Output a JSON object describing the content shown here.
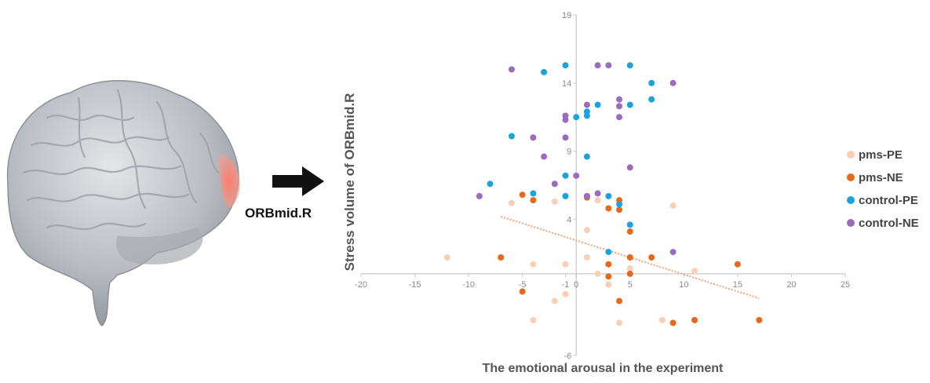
{
  "figure": {
    "region_label": "ORBmid.R"
  },
  "colors": {
    "pms-PE": "#f9cfb6",
    "pms-NE": "#e8681a",
    "control-PE": "#1ba3dc",
    "control-NE": "#9b6bbf",
    "trendline": "#f2a27a",
    "axis": "#c9c9c9",
    "brain": "#b9bcc2",
    "highlight": "#f36a5e"
  },
  "icons": [
    "brain-illustration",
    "arrow-right-icon"
  ],
  "chart_data": {
    "type": "scatter",
    "xlabel": "The emotional arousal in the experiment",
    "ylabel": "Stress volume of ORBmid.R",
    "xlim": [
      -20,
      25
    ],
    "ylim": [
      -6,
      19
    ],
    "xticks": [
      -20,
      -15,
      -10,
      -5,
      -1,
      0,
      5,
      10,
      15,
      20,
      25
    ],
    "xtick_labels": [
      "-20",
      "-15",
      "-10",
      "-5",
      "-1",
      "0",
      "5",
      "10",
      "15",
      "20",
      "25"
    ],
    "yticks": [
      -6,
      4,
      9,
      14,
      19
    ],
    "ytick_labels": [
      "-6",
      "4",
      "9",
      "14",
      "19"
    ],
    "grid": false,
    "legend_position": "right",
    "series": [
      {
        "name": "pms-PE",
        "points": [
          [
            -12,
            1.2
          ],
          [
            -6,
            5.2
          ],
          [
            -4,
            0.7
          ],
          [
            -4,
            -3.4
          ],
          [
            -2,
            5.3
          ],
          [
            -2,
            -2
          ],
          [
            -1,
            -1.5
          ],
          [
            -1,
            0.7
          ],
          [
            1,
            1.2
          ],
          [
            1,
            3.2
          ],
          [
            1,
            5.7
          ],
          [
            2,
            0
          ],
          [
            2,
            5.4
          ],
          [
            3,
            -0.8
          ],
          [
            4,
            -3.6
          ],
          [
            5,
            0.4
          ],
          [
            8,
            -3.4
          ],
          [
            9,
            5
          ],
          [
            11,
            0.2
          ]
        ]
      },
      {
        "name": "pms-NE",
        "points": [
          [
            -7,
            1.2
          ],
          [
            -5,
            -1.3
          ],
          [
            -5,
            5.8
          ],
          [
            -4,
            5.4
          ],
          [
            1,
            5.6
          ],
          [
            3,
            4.8
          ],
          [
            3,
            0.7
          ],
          [
            3,
            -0.2
          ],
          [
            4,
            5.4
          ],
          [
            4,
            4.7
          ],
          [
            4,
            -2
          ],
          [
            5,
            3.1
          ],
          [
            5,
            1.2
          ],
          [
            5,
            0
          ],
          [
            7,
            1.2
          ],
          [
            9,
            -3.6
          ],
          [
            11,
            -3.4
          ],
          [
            15,
            0.7
          ],
          [
            17,
            -3.4
          ]
        ]
      },
      {
        "name": "control-PE",
        "points": [
          [
            -8,
            6.6
          ],
          [
            -6,
            10.1
          ],
          [
            -4,
            5.9
          ],
          [
            -3,
            14.8
          ],
          [
            -1,
            15.3
          ],
          [
            -1,
            7.2
          ],
          [
            -1,
            5.7
          ],
          [
            0,
            11.5
          ],
          [
            1,
            11.6
          ],
          [
            1,
            11.9
          ],
          [
            1,
            8.6
          ],
          [
            2,
            12.4
          ],
          [
            3,
            5.7
          ],
          [
            3,
            1.6
          ],
          [
            4,
            5.1
          ],
          [
            5,
            15.3
          ],
          [
            5,
            12.4
          ],
          [
            5,
            3.6
          ],
          [
            7,
            14
          ],
          [
            7,
            12.8
          ]
        ]
      },
      {
        "name": "control-NE",
        "points": [
          [
            -9,
            5.7
          ],
          [
            -6,
            15
          ],
          [
            -4,
            10
          ],
          [
            -3,
            8.6
          ],
          [
            -2,
            6.6
          ],
          [
            -1,
            11.6
          ],
          [
            -1,
            11.3
          ],
          [
            -1,
            10
          ],
          [
            0,
            7.2
          ],
          [
            1,
            12.4
          ],
          [
            1,
            5.7
          ],
          [
            2,
            15.3
          ],
          [
            2,
            5.9
          ],
          [
            3,
            15.3
          ],
          [
            4,
            12.8
          ],
          [
            4,
            12.3
          ],
          [
            4,
            11.5
          ],
          [
            5,
            7.8
          ],
          [
            9,
            14
          ],
          [
            9,
            1.6
          ]
        ]
      }
    ],
    "trendline": {
      "series": "pms-NE",
      "from": [
        -7,
        4.2
      ],
      "to": [
        17,
        -1.8
      ]
    }
  }
}
